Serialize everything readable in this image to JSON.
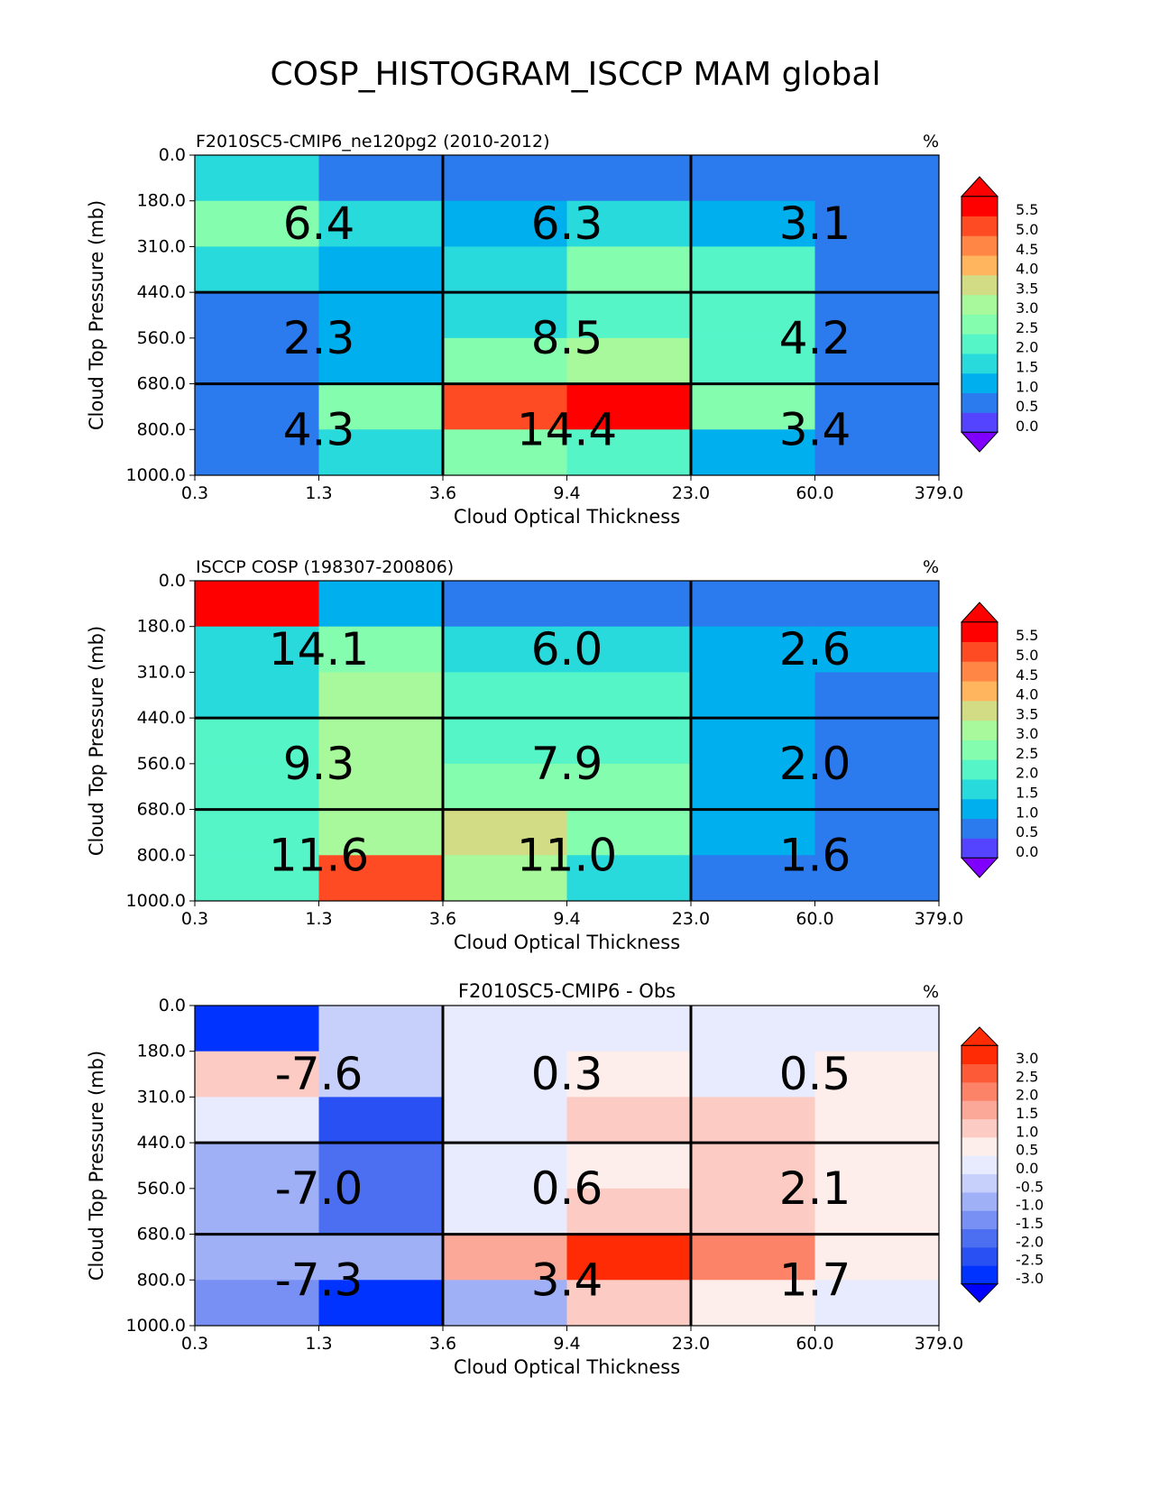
{
  "suptitle": "COSP_HISTOGRAM_ISCCP MAM global",
  "chart_data": [
    {
      "type": "heatmap",
      "title_left": "F2010SC5-CMIP6_ne120pg2 (2010-2012)",
      "title_center": "",
      "units": "%",
      "xlabel": "Cloud Optical Thickness",
      "ylabel": "Cloud Top Pressure (mb)",
      "x_ticks": [
        "0.3",
        "1.3",
        "3.6",
        "9.4",
        "23.0",
        "60.0",
        "379.0"
      ],
      "y_ticks": [
        "0.0",
        "180.0",
        "310.0",
        "440.0",
        "560.0",
        "680.0",
        "800.0",
        "1000.0"
      ],
      "cells": [
        [
          1.5,
          0.25,
          0.25,
          0.25,
          0.25,
          0.25
        ],
        [
          2.25,
          1.5,
          0.75,
          1.5,
          0.75,
          0.25
        ],
        [
          1.5,
          0.75,
          1.5,
          2.25,
          1.75,
          0.25
        ],
        [
          0.25,
          0.75,
          1.5,
          1.75,
          1.75,
          0.25
        ],
        [
          0.25,
          0.75,
          2.25,
          2.75,
          1.75,
          0.25
        ],
        [
          0.25,
          2.25,
          4.75,
          5.25,
          2.25,
          0.25
        ],
        [
          0.25,
          1.5,
          2.25,
          1.75,
          0.75,
          0.25
        ]
      ],
      "group_totals": [
        [
          "6.4",
          "6.3",
          "3.1"
        ],
        [
          "2.3",
          "8.5",
          "4.2"
        ],
        [
          "4.3",
          "14.4",
          "3.4"
        ]
      ],
      "colorbar": {
        "labels": [
          "5.5",
          "5.0",
          "4.5",
          "4.0",
          "3.5",
          "3.0",
          "2.5",
          "2.0",
          "1.5",
          "1.0",
          "0.5",
          "0.0"
        ],
        "bounds": [
          -0.25,
          0.25,
          0.75,
          1.25,
          1.75,
          2.25,
          2.75,
          3.25,
          3.75,
          4.25,
          4.75,
          5.25,
          5.75
        ],
        "colors": [
          "#5544ff",
          "#2b7bee",
          "#00b0ee",
          "#28dadc",
          "#55f5c8",
          "#85fdaf",
          "#a8f89c",
          "#d2dc84",
          "#ffb45e",
          "#ff8645",
          "#ff4b24",
          "#ff0000"
        ],
        "under": "#7f00ff",
        "over": "#ff0000"
      }
    },
    {
      "type": "heatmap",
      "title_left": "ISCCP COSP (198307-200806)",
      "title_center": "",
      "units": "%",
      "xlabel": "Cloud Optical Thickness",
      "ylabel": "Cloud Top Pressure (mb)",
      "x_ticks": [
        "0.3",
        "1.3",
        "3.6",
        "9.4",
        "23.0",
        "60.0",
        "379.0"
      ],
      "y_ticks": [
        "0.0",
        "180.0",
        "310.0",
        "440.0",
        "560.0",
        "680.0",
        "800.0",
        "1000.0"
      ],
      "cells": [
        [
          5.5,
          0.75,
          0.25,
          0.25,
          0.25,
          0.25
        ],
        [
          1.5,
          2.25,
          1.5,
          1.5,
          0.75,
          0.75
        ],
        [
          1.5,
          3.0,
          1.75,
          1.75,
          0.75,
          0.25
        ],
        [
          1.75,
          2.75,
          1.75,
          1.75,
          0.75,
          0.25
        ],
        [
          1.75,
          3.0,
          2.25,
          2.25,
          0.75,
          0.25
        ],
        [
          1.75,
          3.0,
          3.5,
          2.25,
          0.75,
          0.25
        ],
        [
          1.75,
          4.75,
          3.0,
          1.5,
          0.25,
          0.25
        ]
      ],
      "group_totals": [
        [
          "14.1",
          "6.0",
          "2.6"
        ],
        [
          "9.3",
          "7.9",
          "2.0"
        ],
        [
          "11.6",
          "11.0",
          "1.6"
        ]
      ],
      "colorbar": {
        "labels": [
          "5.5",
          "5.0",
          "4.5",
          "4.0",
          "3.5",
          "3.0",
          "2.5",
          "2.0",
          "1.5",
          "1.0",
          "0.5",
          "0.0"
        ],
        "bounds": [
          -0.25,
          0.25,
          0.75,
          1.25,
          1.75,
          2.25,
          2.75,
          3.25,
          3.75,
          4.25,
          4.75,
          5.25,
          5.75
        ],
        "colors": [
          "#5544ff",
          "#2b7bee",
          "#00b0ee",
          "#28dadc",
          "#55f5c8",
          "#85fdaf",
          "#a8f89c",
          "#d2dc84",
          "#ffb45e",
          "#ff8645",
          "#ff4b24",
          "#ff0000"
        ],
        "under": "#7f00ff",
        "over": "#ff0000"
      }
    },
    {
      "type": "heatmap",
      "title_left": "",
      "title_center": "F2010SC5-CMIP6 - Obs",
      "units": "%",
      "xlabel": "Cloud Optical Thickness",
      "ylabel": "Cloud Top Pressure (mb)",
      "x_ticks": [
        "0.3",
        "1.3",
        "3.6",
        "9.4",
        "23.0",
        "60.0",
        "379.0"
      ],
      "y_ticks": [
        "0.0",
        "180.0",
        "310.0",
        "440.0",
        "560.0",
        "680.0",
        "800.0",
        "1000.0"
      ],
      "cells": [
        [
          -3.0,
          -0.75,
          -0.25,
          -0.25,
          -0.25,
          -0.25
        ],
        [
          0.75,
          -0.75,
          -0.25,
          0.25,
          -0.25,
          0.25
        ],
        [
          -0.25,
          -2.5,
          -0.25,
          0.75,
          0.75,
          0.25
        ],
        [
          -1.25,
          -2.25,
          -0.25,
          0.25,
          0.75,
          0.25
        ],
        [
          -1.25,
          -2.25,
          -0.25,
          0.75,
          0.75,
          0.25
        ],
        [
          -1.25,
          -1.25,
          1.25,
          2.75,
          1.75,
          0.25
        ],
        [
          -1.75,
          -3.0,
          -1.25,
          0.75,
          0.25,
          -0.25
        ]
      ],
      "group_totals": [
        [
          "-7.6",
          "0.3",
          "0.5"
        ],
        [
          "-7.0",
          "0.6",
          "2.1"
        ],
        [
          "-7.3",
          "3.4",
          "1.7"
        ]
      ],
      "colorbar": {
        "labels": [
          "3.0",
          "2.5",
          "2.0",
          "1.5",
          "1.0",
          "0.5",
          "0.0",
          "-0.5",
          "-1.0",
          "-1.5",
          "-2.0",
          "-2.5",
          "-3.0"
        ],
        "bounds": [
          -3.25,
          -2.75,
          -2.25,
          -1.75,
          -1.25,
          -0.75,
          -0.25,
          0.25,
          0.75,
          1.25,
          1.75,
          2.25,
          2.75,
          3.25
        ],
        "colors": [
          "#0033ff",
          "#2850f3",
          "#4c6ff2",
          "#7890f4",
          "#a0b0f7",
          "#c6d0fa",
          "#e8ebfd",
          "#fdeeec",
          "#fccbc3",
          "#fca898",
          "#fc8368",
          "#fd5a37",
          "#ff2b05"
        ],
        "under": "#0000ff",
        "over": "#ff2b05"
      }
    }
  ]
}
